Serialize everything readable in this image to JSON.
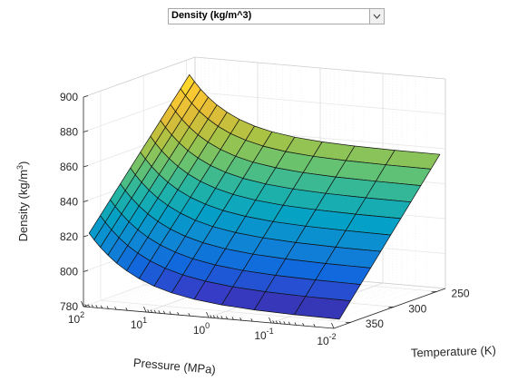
{
  "dropdown": {
    "selected": "Density (kg/m^3)"
  },
  "icons": {
    "dropdown_arrow": "chevron-down-icon"
  },
  "chart_data": {
    "type": "surface",
    "title": "",
    "zlabel_base": "Density (kg/m",
    "zlabel_sup": "3",
    "zlabel_close": ")",
    "xlabel": "Pressure (MPa)",
    "ylabel": "Temperature (K)",
    "z_ticks": [
      "780",
      "800",
      "820",
      "840",
      "860",
      "880",
      "900"
    ],
    "z_range": [
      780,
      900
    ],
    "pressure_ticks": [
      {
        "base": "10",
        "exp": "2"
      },
      {
        "base": "10",
        "exp": "1"
      },
      {
        "base": "10",
        "exp": "0"
      },
      {
        "base": "10",
        "exp": "-1"
      },
      {
        "base": "10",
        "exp": "-2"
      }
    ],
    "pressure_log_range": [
      -2,
      2
    ],
    "temperature_ticks": [
      "250",
      "300",
      "350"
    ],
    "temperature_range": [
      240,
      370
    ],
    "grid": true,
    "colormap": "parula",
    "surface_corners": {
      "high_pressure_low_temp": 895,
      "low_pressure_low_temp": 862,
      "high_pressure_high_temp": 817,
      "low_pressure_high_temp": 780
    }
  }
}
